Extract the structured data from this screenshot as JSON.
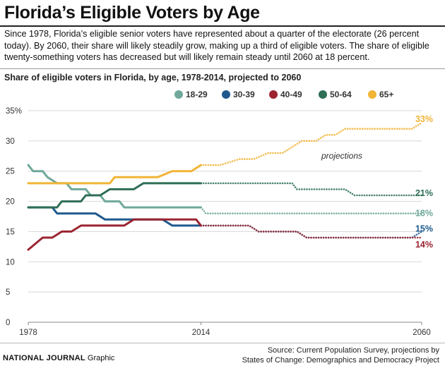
{
  "title": "Florida’s Eligible Voters by Age",
  "description": "Since 1978, Florida’s eligible senior voters have represented about a quarter of the electorate (26 percent today). By 2060, their share will likely steadily grow, making up a third of eligible voters. The share of eligible twenty-something voters has decreased but will likely remain steady until 2060 at 18 percent.",
  "brand": {
    "name": "NATIONAL JOURNAL",
    "suffix": "Graphic"
  },
  "source": {
    "line1": "Source: Current Population Survey, projections by",
    "line2": "States of Change: Demographics and Democracy Project"
  },
  "chart_data": {
    "type": "line",
    "title": "Share of eligible voters in Florida, by age, 1978-2014, projected to 2060",
    "annotation": "projections",
    "x_ticks": [
      "1978",
      "2014",
      "2060"
    ],
    "y_ticks": [
      "0",
      "5",
      "10",
      "15",
      "20",
      "25",
      "30",
      "35%"
    ],
    "xlim": [
      1978,
      2060
    ],
    "ylim": [
      0,
      35
    ],
    "grid": "horizontal",
    "legend_position": "top",
    "projection_start": 2014,
    "series": [
      {
        "name": "18-29",
        "color": "#6fa89a",
        "end_label": "18%",
        "points": [
          [
            1978,
            26
          ],
          [
            1979,
            25
          ],
          [
            1981,
            25
          ],
          [
            1982,
            24
          ],
          [
            1984,
            23
          ],
          [
            1986,
            23
          ],
          [
            1987,
            22
          ],
          [
            1990,
            22
          ],
          [
            1991,
            21
          ],
          [
            1993,
            21
          ],
          [
            1994,
            20
          ],
          [
            1997,
            20
          ],
          [
            1998,
            19
          ],
          [
            2014,
            19
          ],
          [
            2015,
            18
          ],
          [
            2060,
            18
          ]
        ]
      },
      {
        "name": "30-39",
        "color": "#1f5a8e",
        "end_label": "15%",
        "points": [
          [
            1978,
            19
          ],
          [
            1983,
            19
          ],
          [
            1984,
            18
          ],
          [
            1992,
            18
          ],
          [
            1994,
            17
          ],
          [
            2006,
            17
          ],
          [
            2008,
            16
          ],
          [
            2014,
            16
          ],
          [
            2024,
            16
          ],
          [
            2026,
            15
          ],
          [
            2034,
            15
          ],
          [
            2036,
            14
          ],
          [
            2058,
            14
          ],
          [
            2060,
            15
          ]
        ]
      },
      {
        "name": "40-49",
        "color": "#9b2430",
        "end_label": "14%",
        "points": [
          [
            1978,
            12
          ],
          [
            1981,
            14
          ],
          [
            1983,
            14
          ],
          [
            1985,
            15
          ],
          [
            1987,
            15
          ],
          [
            1989,
            16
          ],
          [
            1998,
            16
          ],
          [
            2000,
            17
          ],
          [
            2013,
            17
          ],
          [
            2014,
            16
          ],
          [
            2024,
            16
          ],
          [
            2026,
            15
          ],
          [
            2034,
            15
          ],
          [
            2036,
            14
          ],
          [
            2060,
            14
          ]
        ]
      },
      {
        "name": "50-64",
        "color": "#2e6e55",
        "end_label": "21%",
        "points": [
          [
            1978,
            19
          ],
          [
            1984,
            19
          ],
          [
            1985,
            20
          ],
          [
            1989,
            20
          ],
          [
            1990,
            21
          ],
          [
            1993,
            21
          ],
          [
            1995,
            22
          ],
          [
            2000,
            22
          ],
          [
            2002,
            23
          ],
          [
            2014,
            23
          ],
          [
            2033,
            23
          ],
          [
            2034,
            22
          ],
          [
            2044,
            22
          ],
          [
            2046,
            21
          ],
          [
            2060,
            21
          ]
        ]
      },
      {
        "name": "65+",
        "color": "#f1b436",
        "end_label": "33%",
        "points": [
          [
            1978,
            23
          ],
          [
            1995,
            23
          ],
          [
            1996,
            24
          ],
          [
            2005,
            24
          ],
          [
            2008,
            25
          ],
          [
            2012,
            25
          ],
          [
            2014,
            26
          ],
          [
            2018,
            26
          ],
          [
            2022,
            27
          ],
          [
            2025,
            27
          ],
          [
            2028,
            28
          ],
          [
            2031,
            28
          ],
          [
            2035,
            30
          ],
          [
            2038,
            30
          ],
          [
            2040,
            31
          ],
          [
            2042,
            31
          ],
          [
            2044,
            32
          ],
          [
            2058,
            32
          ],
          [
            2060,
            33
          ]
        ]
      }
    ]
  }
}
